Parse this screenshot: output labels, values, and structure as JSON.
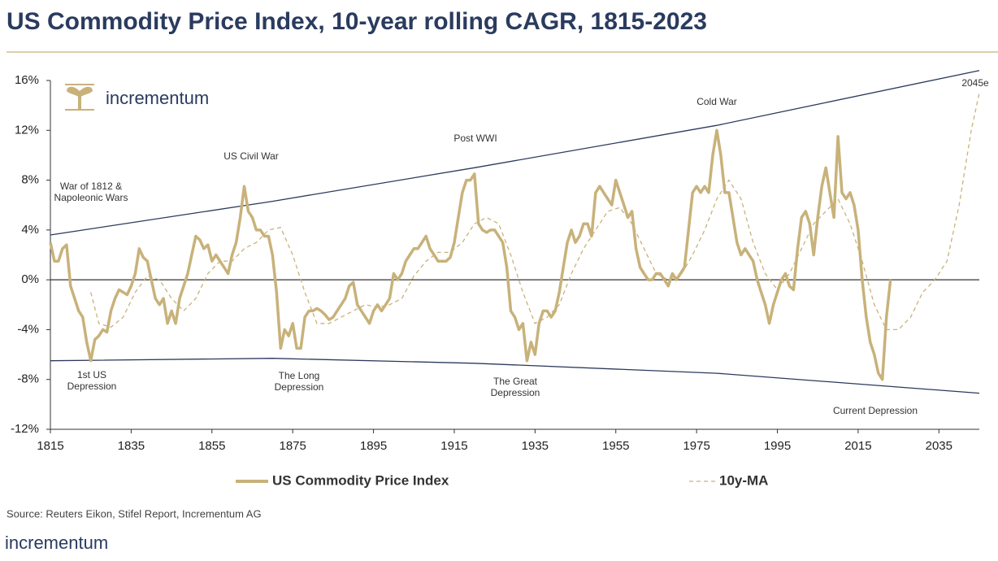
{
  "chart_data": {
    "type": "line",
    "title": "US Commodity Price Index, 10-year rolling CAGR, 1815-2023",
    "logo": "incrementum",
    "source": "Source: Reuters Eikon, Stifel Report, Incrementum AG",
    "footer_logo": "incrementum",
    "xlim": [
      1815,
      2045
    ],
    "ylim": [
      -12,
      16
    ],
    "xticks": [
      1815,
      1835,
      1855,
      1875,
      1895,
      1915,
      1935,
      1955,
      1975,
      1995,
      2015,
      2035
    ],
    "yticks": [
      {
        "value": -12,
        "label": "-12%"
      },
      {
        "value": -8,
        "label": "-8%"
      },
      {
        "value": -4,
        "label": "-4%"
      },
      {
        "value": 0,
        "label": "0%"
      },
      {
        "value": 4,
        "label": "4%"
      },
      {
        "value": 8,
        "label": "8%"
      },
      {
        "value": 12,
        "label": "12%"
      },
      {
        "value": 16,
        "label": "16%"
      }
    ],
    "series": [
      {
        "name": "US Commodity Price Index",
        "color": "#c8b27a",
        "line_style": "solid",
        "x": [
          1815,
          1816,
          1817,
          1818,
          1819,
          1820,
          1821,
          1822,
          1823,
          1824,
          1825,
          1826,
          1827,
          1828,
          1829,
          1830,
          1831,
          1832,
          1833,
          1834,
          1835,
          1836,
          1837,
          1838,
          1839,
          1840,
          1841,
          1842,
          1843,
          1844,
          1845,
          1846,
          1847,
          1848,
          1849,
          1850,
          1851,
          1852,
          1853,
          1854,
          1855,
          1856,
          1857,
          1858,
          1859,
          1860,
          1861,
          1862,
          1863,
          1864,
          1865,
          1866,
          1867,
          1868,
          1869,
          1870,
          1871,
          1872,
          1873,
          1874,
          1875,
          1876,
          1877,
          1878,
          1879,
          1880,
          1881,
          1882,
          1883,
          1884,
          1885,
          1886,
          1887,
          1888,
          1889,
          1890,
          1891,
          1892,
          1893,
          1894,
          1895,
          1896,
          1897,
          1898,
          1899,
          1900,
          1901,
          1902,
          1903,
          1904,
          1905,
          1906,
          1907,
          1908,
          1909,
          1910,
          1911,
          1912,
          1913,
          1914,
          1915,
          1916,
          1917,
          1918,
          1919,
          1920,
          1921,
          1922,
          1923,
          1924,
          1925,
          1926,
          1927,
          1928,
          1929,
          1930,
          1931,
          1932,
          1933,
          1934,
          1935,
          1936,
          1937,
          1938,
          1939,
          1940,
          1941,
          1942,
          1943,
          1944,
          1945,
          1946,
          1947,
          1948,
          1949,
          1950,
          1951,
          1952,
          1953,
          1954,
          1955,
          1956,
          1957,
          1958,
          1959,
          1960,
          1961,
          1962,
          1963,
          1964,
          1965,
          1966,
          1967,
          1968,
          1969,
          1970,
          1971,
          1972,
          1973,
          1974,
          1975,
          1976,
          1977,
          1978,
          1979,
          1980,
          1981,
          1982,
          1983,
          1984,
          1985,
          1986,
          1987,
          1988,
          1989,
          1990,
          1991,
          1992,
          1993,
          1994,
          1995,
          1996,
          1997,
          1998,
          1999,
          2000,
          2001,
          2002,
          2003,
          2004,
          2005,
          2006,
          2007,
          2008,
          2009,
          2010,
          2011,
          2012,
          2013,
          2014,
          2015,
          2016,
          2017,
          2018,
          2019,
          2020,
          2021,
          2022,
          2023
        ],
        "values": [
          3,
          1.5,
          1.5,
          2.5,
          2.8,
          -0.5,
          -1.5,
          -2.5,
          -3,
          -5,
          -6.5,
          -4.8,
          -4.5,
          -4,
          -4.2,
          -2.5,
          -1.5,
          -0.8,
          -1,
          -1.2,
          -0.5,
          0.5,
          2.5,
          1.8,
          1.5,
          0,
          -1.5,
          -2,
          -1.5,
          -3.5,
          -2.5,
          -3.5,
          -1.5,
          -0.5,
          0.5,
          2,
          3.5,
          3.2,
          2.5,
          2.8,
          1.5,
          2,
          1.5,
          1,
          0.5,
          2,
          3,
          5,
          7.5,
          5.5,
          5,
          4,
          4,
          3.5,
          3.5,
          2,
          -1,
          -5.5,
          -4,
          -4.5,
          -3.5,
          -5.5,
          -5.5,
          -3,
          -2.5,
          -2.5,
          -2.3,
          -2.5,
          -2.8,
          -3.2,
          -3,
          -2.5,
          -2,
          -1.5,
          -0.5,
          -0.2,
          -2,
          -2.5,
          -3,
          -3.5,
          -2.5,
          -2,
          -2.5,
          -2,
          -1.5,
          0.5,
          0,
          0.5,
          1.5,
          2,
          2.5,
          2.5,
          3,
          3.5,
          2.5,
          2,
          1.5,
          1.5,
          1.5,
          1.8,
          3,
          5,
          7,
          8,
          8,
          8.5,
          4.5,
          4,
          3.8,
          4,
          4,
          3.5,
          3,
          1,
          -2.5,
          -3,
          -4,
          -3.5,
          -6.5,
          -5,
          -6,
          -3.5,
          -2.5,
          -2.5,
          -3,
          -2.5,
          -1,
          1,
          3,
          4,
          3,
          3.5,
          4.5,
          4.5,
          3.5,
          7,
          7.5,
          7,
          6.5,
          6,
          8,
          7,
          6,
          5,
          5.5,
          2.5,
          1,
          0.5,
          0,
          0,
          0.5,
          0.5,
          0,
          -0.5,
          0.5,
          0,
          0.5,
          1,
          4,
          7,
          7.5,
          7,
          7.5,
          7,
          10,
          12,
          10,
          7,
          7,
          5,
          3,
          2,
          2.5,
          2,
          1.5,
          0,
          -1,
          -2,
          -3.5,
          -2,
          -1,
          0,
          0.5,
          -0.5,
          -0.8,
          2.5,
          5,
          5.5,
          4.5,
          2,
          5,
          7.5,
          9,
          7,
          5,
          11.5,
          7,
          6.5,
          7,
          6,
          4,
          0,
          -3,
          -5,
          -6,
          -7.5,
          -8,
          -3,
          0
        ]
      },
      {
        "name": "10y-MA",
        "color": "#c8b27a",
        "line_style": "dashed",
        "x": [
          1825,
          1827,
          1830,
          1833,
          1836,
          1839,
          1842,
          1845,
          1848,
          1851,
          1854,
          1857,
          1860,
          1863,
          1866,
          1869,
          1872,
          1875,
          1878,
          1881,
          1884,
          1887,
          1890,
          1893,
          1896,
          1899,
          1902,
          1905,
          1908,
          1911,
          1914,
          1917,
          1920,
          1923,
          1926,
          1929,
          1932,
          1935,
          1938,
          1941,
          1944,
          1947,
          1950,
          1953,
          1956,
          1959,
          1962,
          1965,
          1968,
          1971,
          1974,
          1977,
          1980,
          1983,
          1986,
          1989,
          1992,
          1995,
          1998,
          2001,
          2004,
          2007,
          2010,
          2013,
          2016,
          2019,
          2022,
          2025,
          2028,
          2031,
          2034,
          2037,
          2040,
          2043,
          2045
        ],
        "values": [
          -1,
          -3.5,
          -3.8,
          -3,
          -1,
          0.3,
          0,
          -1.5,
          -2.5,
          -1.5,
          0.5,
          1.5,
          1.5,
          2.5,
          3,
          4,
          4.2,
          2,
          -1,
          -3.5,
          -3.5,
          -3,
          -2.5,
          -2,
          -2.2,
          -2,
          -1.5,
          0.3,
          1.5,
          2.2,
          2.2,
          3,
          4.5,
          5,
          4.5,
          2,
          -1,
          -3.5,
          -3,
          -2,
          0.5,
          2.5,
          4,
          5.5,
          5.8,
          4.5,
          2.5,
          0.5,
          0,
          0.3,
          2,
          4,
          6.5,
          8,
          6.5,
          3,
          0.5,
          -0.8,
          0.5,
          2.5,
          4.5,
          5.5,
          6.5,
          4.5,
          1.5,
          -2,
          -4,
          -4,
          -3,
          -1,
          0,
          1.5,
          6,
          12,
          15
        ]
      }
    ],
    "trend_lines": [
      {
        "color": "#2b3a5c",
        "x": [
          1815,
          1870,
          1920,
          1980,
          2045
        ],
        "values": [
          3.6,
          6.3,
          9,
          12.4,
          16.8
        ]
      },
      {
        "color": "#2b3a5c",
        "x": [
          1815,
          1870,
          1920,
          1980,
          2045
        ],
        "values": [
          -6.5,
          -6.3,
          -6.7,
          -7.5,
          -9.1
        ]
      }
    ],
    "annotations": [
      {
        "lines": [
          "War of 1812 &",
          "Napoleonic Wars"
        ]
      },
      {
        "lines": [
          "US Civil War"
        ]
      },
      {
        "lines": [
          "Post WWI"
        ]
      },
      {
        "lines": [
          "Cold War"
        ]
      },
      {
        "lines": [
          "2045e"
        ]
      },
      {
        "lines": [
          "1st US",
          "Depression"
        ]
      },
      {
        "lines": [
          "The Long",
          "Depression"
        ]
      },
      {
        "lines": [
          "The Great",
          "Depression"
        ]
      },
      {
        "lines": [
          "Current Depression"
        ]
      }
    ]
  }
}
